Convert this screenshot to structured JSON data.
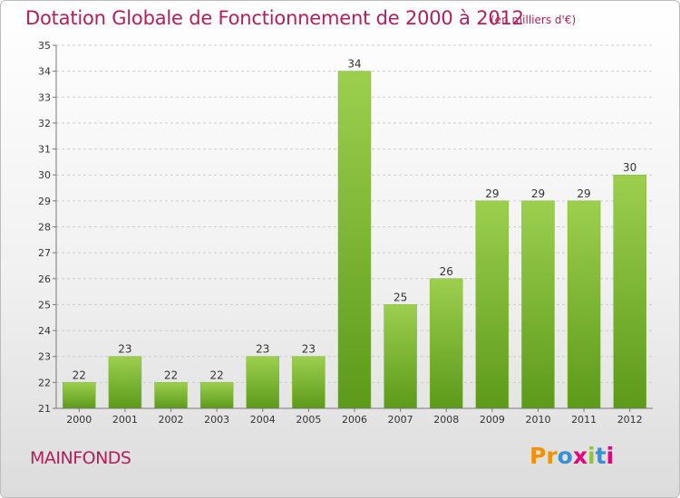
{
  "title": "Dotation Globale de Fonctionnement de 2000 à 2012",
  "subtitle": "(en milliers d'€)",
  "commune": "MAINFONDS",
  "logo_text": "Proxiti",
  "colors": {
    "title": "#b0205d",
    "bar_top": "#9dcf4e",
    "bar_bottom": "#5c9a1a",
    "grid": "#cccccc"
  },
  "chart_data": {
    "type": "bar",
    "categories": [
      "2000",
      "2001",
      "2002",
      "2003",
      "2004",
      "2005",
      "2006",
      "2007",
      "2008",
      "2009",
      "2010",
      "2011",
      "2012"
    ],
    "values": [
      22,
      23,
      22,
      22,
      23,
      23,
      34,
      25,
      26,
      29,
      29,
      29,
      30
    ],
    "ylim": [
      21,
      35
    ],
    "yticks": [
      21,
      22,
      23,
      24,
      25,
      26,
      27,
      28,
      29,
      30,
      31,
      32,
      33,
      34,
      35
    ],
    "grid": true,
    "data_labels": true
  }
}
